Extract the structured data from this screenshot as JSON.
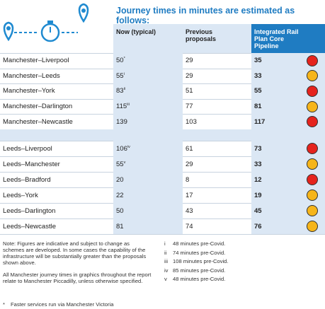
{
  "header": {
    "title": "Journey times in minutes are estimated as follows:"
  },
  "table": {
    "columns": [
      "Now (typical)",
      "Previous proposals",
      "Integrated Rail Plan Core Pipeline"
    ],
    "groups": [
      {
        "rows": [
          {
            "route": "Manchester–Liverpool",
            "now": 50,
            "note": "*",
            "previous": 29,
            "irp": 35,
            "color": "#e5231d"
          },
          {
            "route": "Manchester–Leeds",
            "now": 55,
            "note": "i",
            "previous": 29,
            "irp": 33,
            "color": "#f6b51a"
          },
          {
            "route": "Manchester–York",
            "now": 83,
            "note": "ii",
            "previous": 51,
            "irp": 55,
            "color": "#e5231d"
          },
          {
            "route": "Manchester–Darlington",
            "now": 115,
            "note": "iii",
            "previous": 77,
            "irp": 81,
            "color": "#f6b51a"
          },
          {
            "route": "Manchester–Newcastle",
            "now": 139,
            "previous": 103,
            "irp": 117,
            "color": "#e5231d"
          }
        ]
      },
      {
        "rows": [
          {
            "route": "Leeds–Liverpool",
            "now": 106,
            "note": "iv",
            "previous": 61,
            "irp": 73,
            "color": "#e5231d"
          },
          {
            "route": "Leeds–Manchester",
            "now": 55,
            "note": "v",
            "previous": 29,
            "irp": 33,
            "color": "#f6b51a"
          },
          {
            "route": "Leeds–Bradford",
            "now": 20,
            "previous": 8,
            "irp": 12,
            "color": "#e5231d"
          },
          {
            "route": "Leeds–York",
            "now": 22,
            "previous": 17,
            "irp": 19,
            "color": "#f6b51a"
          },
          {
            "route": "Leeds–Darlington",
            "now": 50,
            "previous": 43,
            "irp": 45,
            "color": "#f6b51a"
          },
          {
            "route": "Leeds–Newcastle",
            "now": 81,
            "previous": 74,
            "irp": 76,
            "color": "#f6b51a"
          }
        ]
      }
    ]
  },
  "notes": {
    "left": [
      "Note: Figures are indicative and subject to change as schemes are developed. In some cases the capability of the infrastructure will be substantially greater than the proposals shown above.",
      "All Manchester journey times in graphics throughout the report relate to Manchester Piccadilly, unless otherwise specified."
    ],
    "footnote": {
      "mark": "*",
      "text": "Faster services run via Manchester Victoria"
    },
    "right": [
      {
        "mark": "i",
        "text": "48 minutes pre-Covid."
      },
      {
        "mark": "ii",
        "text": "74 minutes pre-Covid."
      },
      {
        "mark": "iii",
        "text": "108 minutes pre-Covid."
      },
      {
        "mark": "iv",
        "text": "85 minutes pre-Covid."
      },
      {
        "mark": "v",
        "text": "48 minutes pre-Covid."
      }
    ]
  }
}
